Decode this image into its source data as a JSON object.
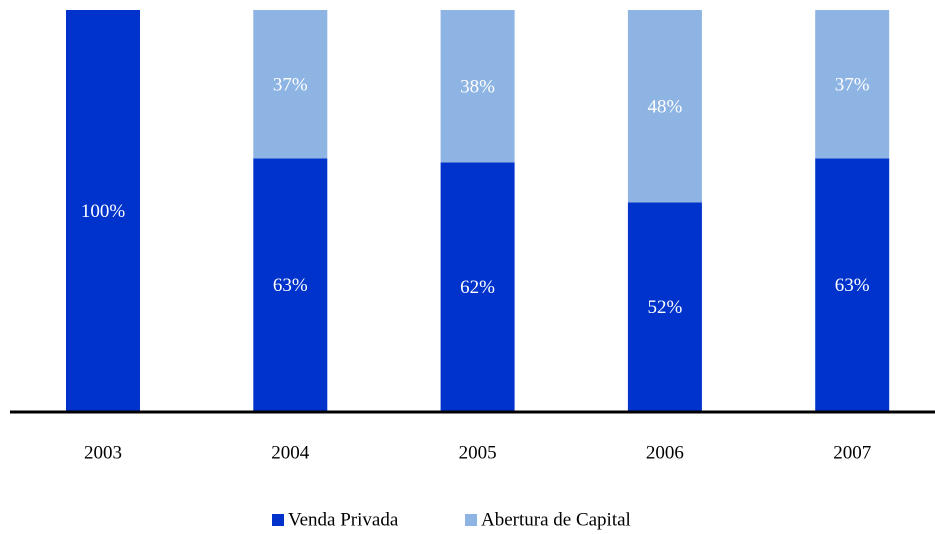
{
  "chart_data": {
    "type": "stacked_bar",
    "categories": [
      "2003",
      "2004",
      "2005",
      "2006",
      "2007"
    ],
    "series": [
      {
        "name": "Venda Privada",
        "color": "#0033cc",
        "values": [
          100,
          63,
          62,
          52,
          63
        ],
        "value_labels": [
          "100%",
          "63%",
          "62%",
          "52%",
          "63%"
        ]
      },
      {
        "name": "Abertura de Capital",
        "color": "#8db4e2",
        "values": [
          null,
          37,
          38,
          48,
          37
        ],
        "value_labels": [
          null,
          "37%",
          "38%",
          "48%",
          "37%"
        ]
      }
    ],
    "ylim": [
      0,
      100
    ]
  }
}
